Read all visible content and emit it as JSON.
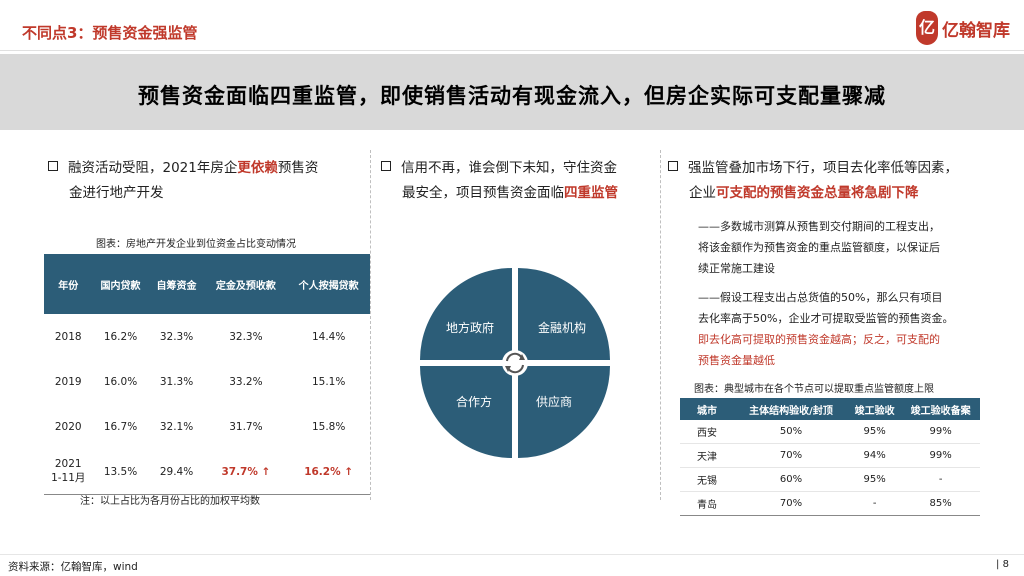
{
  "header": {
    "section_title": "不同点3：预售资金强监管",
    "logo_text": "亿翰智库",
    "logo_mark": "亿"
  },
  "headline": "预售资金面临四重监管，即使销售活动有现金流入，但房企实际可支配量骤减",
  "col1": {
    "bullet_pre": "融资活动受阻，2021年房企",
    "bullet_em": "更依赖",
    "bullet_post1": "预售资",
    "bullet_post2": "金进行地产开发",
    "table_caption": "图表：房地产开发企业到位资金占比变动情况",
    "table_headers": [
      "年份",
      "国内贷款",
      "自筹资金",
      "定金及预收款",
      "个人按揭贷款"
    ],
    "table_rows": [
      {
        "y1": "2018",
        "y2": "",
        "a": "16.2%",
        "b": "32.3%",
        "c": "32.3%",
        "d": "14.4%"
      },
      {
        "y1": "2019",
        "y2": "",
        "a": "16.0%",
        "b": "31.3%",
        "c": "33.2%",
        "d": "15.1%"
      },
      {
        "y1": "2020",
        "y2": "",
        "a": "16.7%",
        "b": "32.1%",
        "c": "31.7%",
        "d": "15.8%"
      },
      {
        "y1": "2021",
        "y2": "1-11月",
        "a": "13.5%",
        "b": "29.4%",
        "c": "37.7% ↑",
        "d": "16.2% ↑"
      }
    ],
    "table_note": "注：以上占比为各月份占比的加权平均数"
  },
  "col2": {
    "bullet_line1": "信用不再，谁会倒下未知，守住资金",
    "bullet_pre": "最安全，项目预售资金面临",
    "bullet_em": "四重监管",
    "quadrants": [
      "地方政府",
      "金融机构",
      "合作方",
      "供应商"
    ]
  },
  "col3": {
    "bullet_line1": "强监管叠加市场下行，项目去化率低等因素，",
    "bullet_pre": "企业",
    "bullet_em": "可支配的预售资金总量将急剧下降",
    "note1": [
      "——多数城市测算从预售到交付期间的工程支出，",
      "将该金额作为预售资金的重点监管额度，以保证后",
      "续正常施工建设"
    ],
    "note2": [
      "——假设工程支出占总货值的50%，那么只有项目",
      "去化率高于50%，企业才可提取受监管的预售资金。"
    ],
    "note2_red": [
      "即去化高可提取的预售资金越高；反之，可支配的",
      "预售资金量越低"
    ],
    "table_caption": "图表：典型城市在各个节点可以提取重点监管额度上限",
    "table_headers": [
      "城市",
      "主体结构验收/封顶",
      "竣工验收",
      "竣工验收备案"
    ],
    "table_rows": [
      {
        "city": "西安",
        "a": "50%",
        "b": "95%",
        "c": "99%"
      },
      {
        "city": "天津",
        "a": "70%",
        "b": "94%",
        "c": "99%"
      },
      {
        "city": "无锡",
        "a": "60%",
        "b": "95%",
        "c": "-"
      },
      {
        "city": "青岛",
        "a": "70%",
        "b": "-",
        "c": "85%"
      }
    ]
  },
  "footer": {
    "source": "资料来源：亿翰智库，wind",
    "page": "8"
  },
  "colors": {
    "accent_red": "#c0392b",
    "table_header": "#2c5d78",
    "banner_gray": "#d9d9d9"
  }
}
